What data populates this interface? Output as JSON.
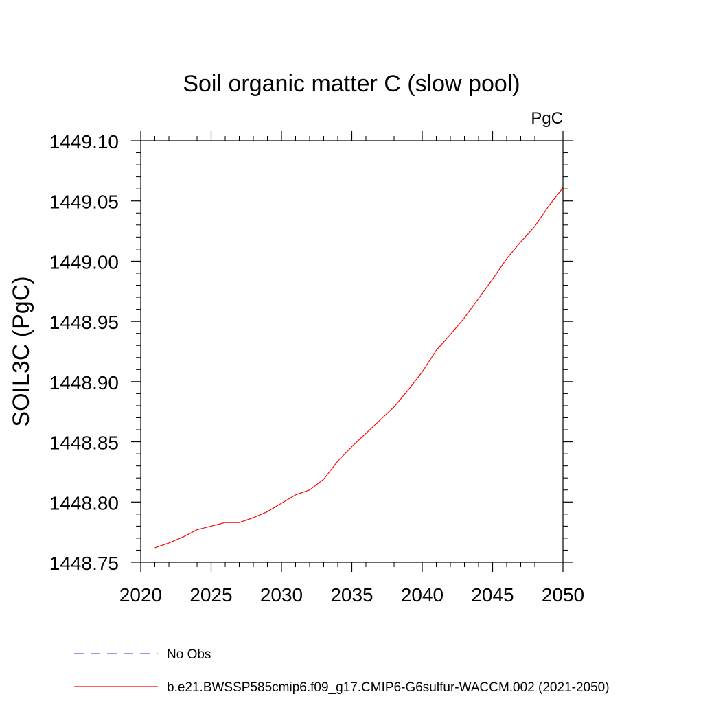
{
  "chart_data": {
    "type": "line",
    "title": "Soil organic matter C (slow pool)",
    "units_label": "PgC",
    "ylabel": "SOIL3C  (PgC)",
    "xlabel": "",
    "xlim": [
      2020,
      2050
    ],
    "ylim": [
      1448.75,
      1449.1
    ],
    "x_ticks": [
      2020,
      2025,
      2030,
      2035,
      2040,
      2045,
      2050
    ],
    "y_ticks": [
      "1448.75",
      "1448.80",
      "1448.85",
      "1448.90",
      "1448.95",
      "1449.00",
      "1449.05",
      "1449.10"
    ],
    "grid": false,
    "series": [
      {
        "name": "b.e21.BWSSP585cmip6.f09_g17.CMIP6-G6sulfur-WACCM.002 (2021-2050)",
        "color": "#ff0000",
        "style": "solid",
        "x": [
          2021,
          2022,
          2023,
          2024,
          2025,
          2026,
          2027,
          2028,
          2029,
          2030,
          2031,
          2032,
          2033,
          2034,
          2035,
          2036,
          2037,
          2038,
          2039,
          2040,
          2041,
          2042,
          2043,
          2044,
          2045,
          2046,
          2047,
          2048,
          2049,
          2050
        ],
        "y": [
          1448.762,
          1448.766,
          1448.771,
          1448.777,
          1448.78,
          1448.783,
          1448.783,
          1448.787,
          1448.792,
          1448.799,
          1448.806,
          1448.81,
          1448.819,
          1448.834,
          1448.846,
          1448.857,
          1448.868,
          1448.879,
          1448.893,
          1448.908,
          1448.926,
          1448.939,
          1448.953,
          1448.969,
          1448.985,
          1449.002,
          1449.016,
          1449.029,
          1449.046,
          1449.061
        ]
      }
    ],
    "legend": {
      "placement": "bottom",
      "entries": [
        {
          "label": "No Obs",
          "color": "#6a5acd",
          "style": "dashed"
        },
        {
          "label": "b.e21.BWSSP585cmip6.f09_g17.CMIP6-G6sulfur-WACCM.002 (2021-2050)",
          "color": "#ff0000",
          "style": "solid"
        }
      ]
    }
  }
}
